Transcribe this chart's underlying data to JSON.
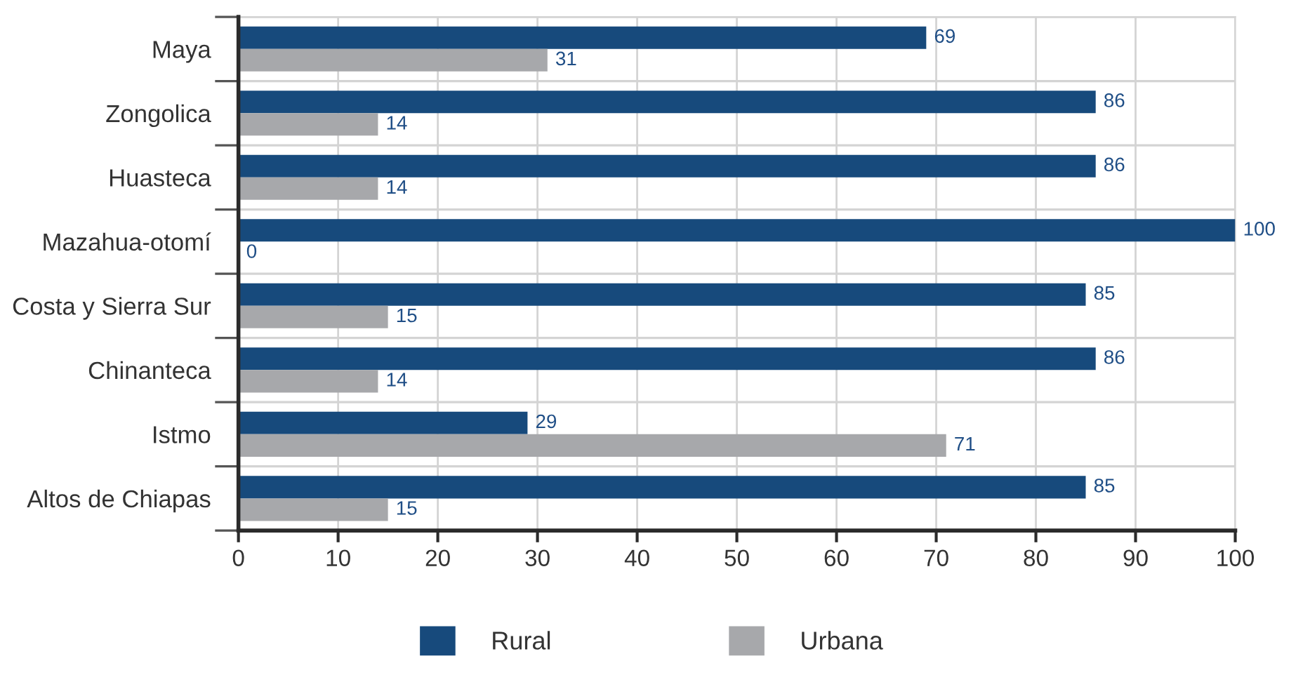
{
  "chart_data": {
    "type": "bar",
    "orientation": "horizontal",
    "categories": [
      "Maya",
      "Zongolica",
      "Huasteca",
      "Mazahua-otomí",
      "Costa y Sierra Sur",
      "Chinanteca",
      "Istmo",
      "Altos de Chiapas"
    ],
    "series": [
      {
        "name": "Rural",
        "color": "#174a7c",
        "values": [
          69,
          86,
          86,
          100,
          85,
          86,
          29,
          85
        ]
      },
      {
        "name": "Urbana",
        "color": "#a7a8ab",
        "values": [
          31,
          14,
          14,
          0,
          15,
          14,
          71,
          15
        ]
      }
    ],
    "xlim": [
      0,
      100
    ],
    "xticks": [
      0,
      10,
      20,
      30,
      40,
      50,
      60,
      70,
      80,
      90,
      100
    ],
    "grid": true,
    "legend": "bottom",
    "data_labels": true
  }
}
